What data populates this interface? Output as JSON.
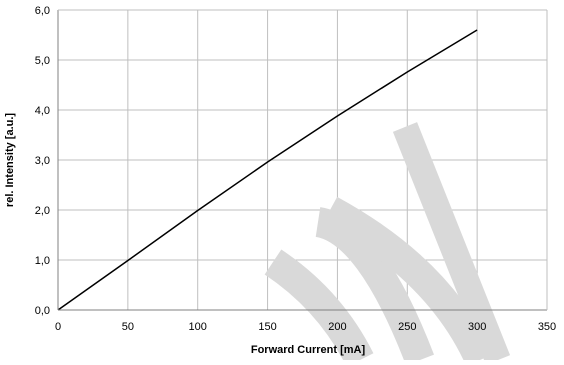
{
  "chart_data": {
    "type": "line",
    "title": "",
    "xlabel": "Forward Current [mA]",
    "ylabel": "rel. Intensity [a.u.]",
    "xlim": [
      0,
      350
    ],
    "ylim": [
      0,
      6
    ],
    "x_ticks": [
      0,
      50,
      100,
      150,
      200,
      250,
      300,
      350
    ],
    "x_tick_labels": [
      "0",
      "50",
      "100",
      "150",
      "200",
      "250",
      "300",
      "350"
    ],
    "y_ticks": [
      0,
      1,
      2,
      3,
      4,
      5,
      6
    ],
    "y_tick_labels": [
      "0,0",
      "1,0",
      "2,0",
      "3,0",
      "4,0",
      "5,0",
      "6,0"
    ],
    "grid": true,
    "legend": "none",
    "series": [
      {
        "color": "#000000",
        "x": [
          0,
          50,
          100,
          150,
          200,
          250,
          300
        ],
        "y": [
          0,
          0.99,
          1.99,
          2.96,
          3.88,
          4.76,
          5.6
        ]
      }
    ]
  },
  "watermark": {
    "text": "Obsolete",
    "color": "#d9d9d9"
  }
}
